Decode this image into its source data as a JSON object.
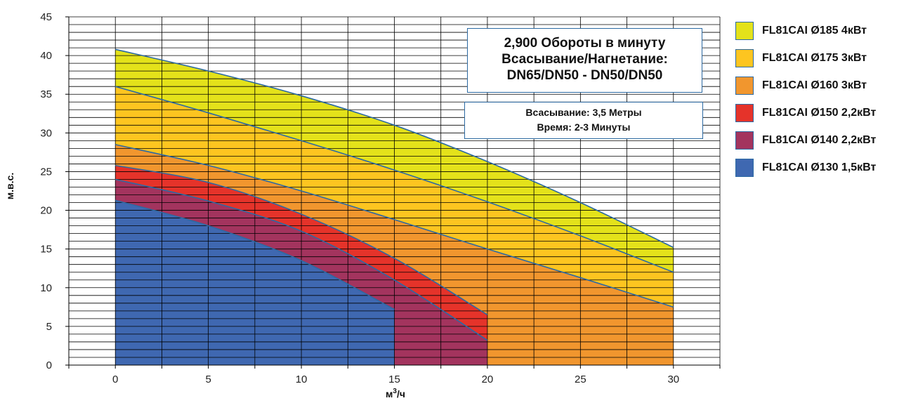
{
  "chart_data": {
    "type": "area",
    "xlabel": "м³/ч",
    "xlabel_base": "м",
    "xlabel_sup": "3",
    "xlabel_suffix": "/ч",
    "ylabel": "м.в.с.",
    "xlim": [
      -2.5,
      32.5
    ],
    "ylim": [
      0,
      45
    ],
    "x_ticks": [
      0,
      5,
      10,
      15,
      20,
      25,
      30
    ],
    "x_tick_labels": [
      "0",
      "5",
      "10",
      "15",
      "20",
      "25",
      "30"
    ],
    "y_ticks": [
      0,
      5,
      10,
      15,
      20,
      25,
      30,
      35,
      40,
      45
    ],
    "y_tick_labels": [
      "0",
      "5",
      "10",
      "15",
      "20",
      "25",
      "30",
      "35",
      "40",
      "45"
    ],
    "grid": true,
    "legend_position": "right",
    "series": [
      {
        "name": "FL81CAI Ø185 4кВт",
        "color": "#e4e21a",
        "x": [
          0,
          5,
          10,
          15,
          20,
          25,
          30
        ],
        "y": [
          40.8,
          38.0,
          34.8,
          31.0,
          26.3,
          21.0,
          15.2
        ]
      },
      {
        "name": "FL81CAI Ø175 3кВт",
        "color": "#fdc520",
        "x": [
          0,
          5,
          10,
          15,
          20,
          25,
          30
        ],
        "y": [
          36.0,
          32.6,
          29.0,
          25.2,
          21.1,
          16.7,
          12.0
        ]
      },
      {
        "name": "FL81CAI Ø160 3кВт",
        "color": "#f1962e",
        "x": [
          0,
          5,
          10,
          15,
          20,
          25,
          30
        ],
        "y": [
          28.5,
          25.8,
          22.5,
          18.8,
          15.0,
          11.3,
          7.5
        ]
      },
      {
        "name": "FL81CAI Ø150 2,2кВт",
        "color": "#e5332a",
        "x": [
          0,
          5,
          10,
          15,
          20
        ],
        "y": [
          25.8,
          23.6,
          19.5,
          13.8,
          6.5
        ]
      },
      {
        "name": "FL81CAI Ø140 2,2кВт",
        "color": "#a3345e",
        "x": [
          0,
          5,
          10,
          15,
          20
        ],
        "y": [
          24.0,
          21.2,
          17.3,
          11.0,
          3.2
        ]
      },
      {
        "name": "FL81CAI Ø130 1,5кВт",
        "color": "#3f68b1",
        "x": [
          0,
          5,
          10,
          15
        ],
        "y": [
          21.3,
          18.0,
          13.5,
          7.2
        ]
      }
    ],
    "annotations": {
      "main_lines": [
        "2,900 Обороты в минуту",
        "Всасывание/Нагнетание:",
        "DN65/DN50 - DN50/DN50"
      ],
      "sub_lines": [
        "Всасывание: 3,5 Метры",
        "Время: 2-3 Минуты"
      ]
    },
    "line_color": "#2c6aa3",
    "grid_color": "#000000"
  }
}
